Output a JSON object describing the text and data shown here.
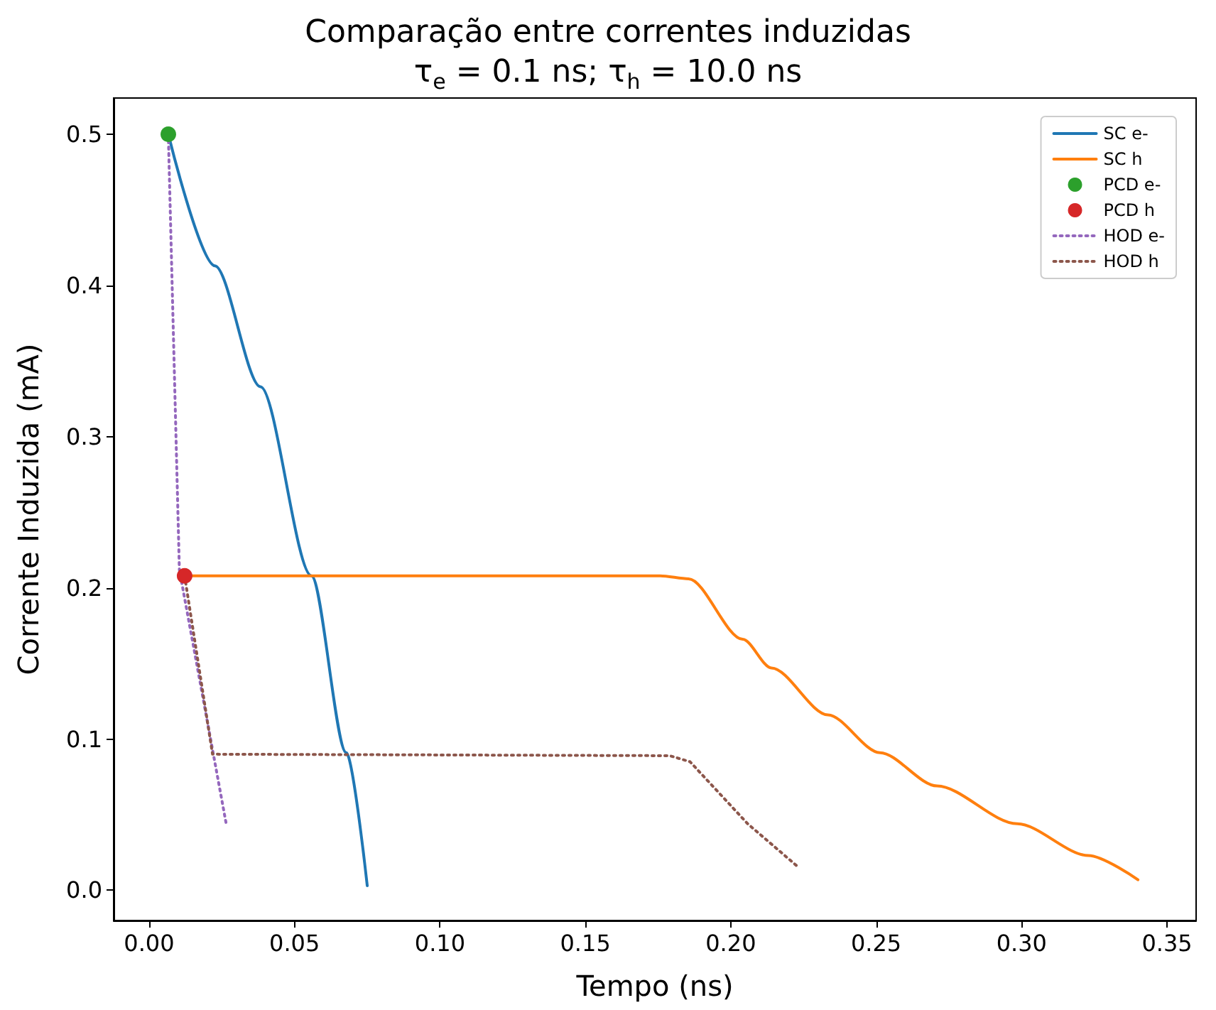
{
  "chart_data": {
    "type": "line",
    "title": "Comparação entre correntes induzidas",
    "subtitle": "τ$_{e}$ = 0.1 ns; τ$_{h}$ = 10.0 ns",
    "xlabel": "Tempo (ns)",
    "ylabel": "Corrente Induzida (mA)",
    "series": [
      {
        "name": "SC e-",
        "color": "#1f77b4",
        "line_style": "solid",
        "x": [
          0.0066,
          0.0226,
          0.0383,
          0.0558,
          0.0678,
          0.075
        ],
        "values": [
          0.5,
          0.413,
          0.333,
          0.208,
          0.091,
          0.003
        ]
      },
      {
        "name": "SC h",
        "color": "#ff7f0e",
        "line_style": "solid",
        "x": [
          0.0122,
          0.1757,
          0.1855,
          0.2041,
          0.214,
          0.2334,
          0.2513,
          0.2709,
          0.2985,
          0.3229,
          0.34
        ],
        "values": [
          0.208,
          0.208,
          0.206,
          0.166,
          0.147,
          0.116,
          0.091,
          0.069,
          0.044,
          0.023,
          0.007
        ]
      },
      {
        "name": "PCD e-",
        "type": "scatter",
        "color": "#2ca02c",
        "marker": "circle",
        "x": [
          0.0066
        ],
        "values": [
          0.5
        ]
      },
      {
        "name": "PCD h",
        "type": "scatter",
        "color": "#d62728",
        "marker": "circle",
        "x": [
          0.0122
        ],
        "values": [
          0.208
        ]
      },
      {
        "name": "HOD e-",
        "color": "#9467bd",
        "line_style": "dotted",
        "x": [
          0.0066,
          0.0104,
          0.0265
        ],
        "values": [
          0.5,
          0.212,
          0.044
        ]
      },
      {
        "name": "HOD h",
        "color": "#8c564b",
        "line_style": "dotted",
        "x": [
          0.0122,
          0.0218,
          0.179,
          0.186,
          0.2058,
          0.2234
        ],
        "values": [
          0.208,
          0.09,
          0.089,
          0.085,
          0.044,
          0.015
        ]
      }
    ],
    "xlim": [
      -0.0122,
      0.36
    ],
    "ylim": [
      -0.02,
      0.524
    ],
    "xticks": [
      {
        "value": 0,
        "label": "0.00"
      },
      {
        "value": 0.05,
        "label": "0.05"
      },
      {
        "value": 0.1,
        "label": "0.10"
      },
      {
        "value": 0.15,
        "label": "0.15"
      },
      {
        "value": 0.2,
        "label": "0.20"
      },
      {
        "value": 0.25,
        "label": "0.25"
      },
      {
        "value": 0.3,
        "label": "0.30"
      },
      {
        "value": 0.35,
        "label": "0.35"
      }
    ],
    "yticks": [
      {
        "value": 0,
        "label": "0.0"
      },
      {
        "value": 0.1,
        "label": "0.1"
      },
      {
        "value": 0.2,
        "label": "0.2"
      },
      {
        "value": 0.3,
        "label": "0.3"
      },
      {
        "value": 0.4,
        "label": "0.4"
      },
      {
        "value": 0.5,
        "label": "0.5"
      }
    ],
    "grid": false,
    "legend": "top right"
  }
}
